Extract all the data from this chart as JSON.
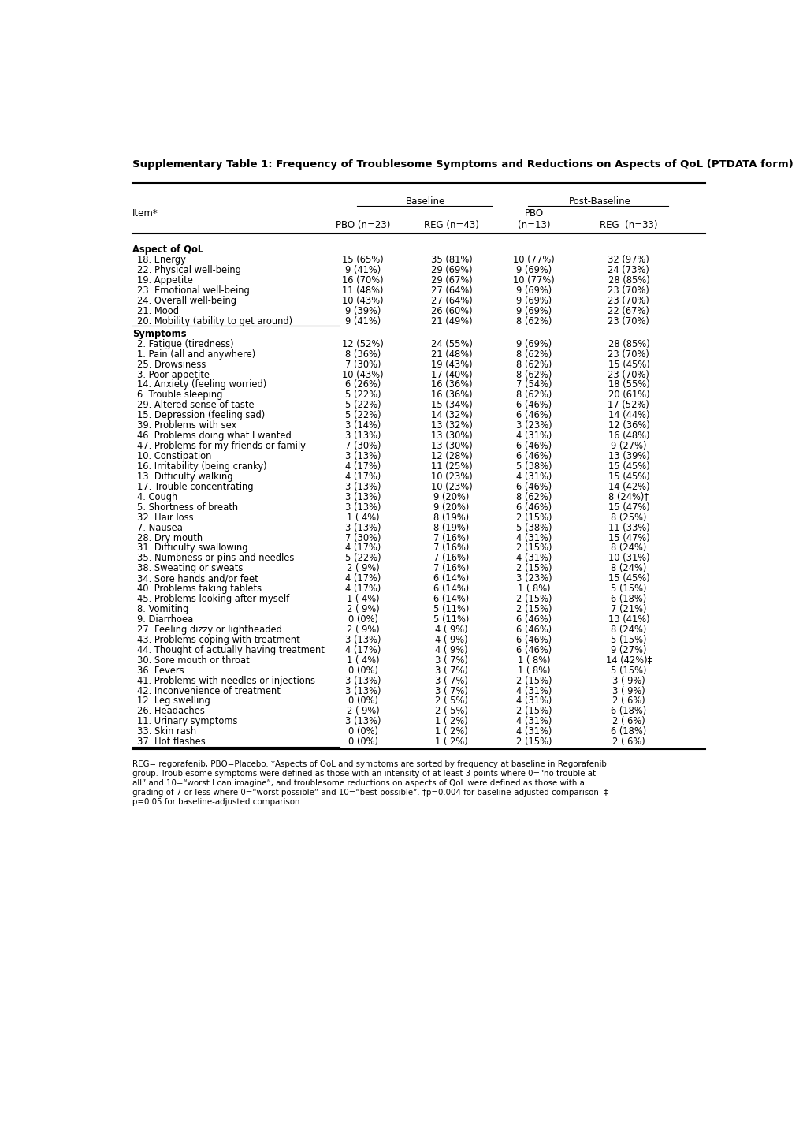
{
  "title": "Supplementary Table 1: Frequency of Troublesome Symptoms and Reductions on Aspects of QoL (PTDATA form)",
  "sections": [
    {
      "name": "Aspect of QoL",
      "rows": [
        [
          "18. Energy",
          "15 (65%)",
          "35 (81%)",
          "10 (77%)",
          "32 (97%)"
        ],
        [
          "22. Physical well-being",
          "9 (41%)",
          "29 (69%)",
          "9 (69%)",
          "24 (73%)"
        ],
        [
          "19. Appetite",
          "16 (70%)",
          "29 (67%)",
          "10 (77%)",
          "28 (85%)"
        ],
        [
          "23. Emotional well-being",
          "11 (48%)",
          "27 (64%)",
          "9 (69%)",
          "23 (70%)"
        ],
        [
          "24. Overall well-being",
          "10 (43%)",
          "27 (64%)",
          "9 (69%)",
          "23 (70%)"
        ],
        [
          "21. Mood",
          "9 (39%)",
          "26 (60%)",
          "9 (69%)",
          "22 (67%)"
        ],
        [
          "20. Mobility (ability to get around)",
          "9 (41%)",
          "21 (49%)",
          "8 (62%)",
          "23 (70%)"
        ]
      ]
    },
    {
      "name": "Symptoms",
      "rows": [
        [
          "2. Fatigue (tiredness)",
          "12 (52%)",
          "24 (55%)",
          "9 (69%)",
          "28 (85%)"
        ],
        [
          "1. Pain (all and anywhere)",
          "8 (36%)",
          "21 (48%)",
          "8 (62%)",
          "23 (70%)"
        ],
        [
          "25. Drowsiness",
          "7 (30%)",
          "19 (43%)",
          "8 (62%)",
          "15 (45%)"
        ],
        [
          "3. Poor appetite",
          "10 (43%)",
          "17 (40%)",
          "8 (62%)",
          "23 (70%)"
        ],
        [
          "14. Anxiety (feeling worried)",
          "6 (26%)",
          "16 (36%)",
          "7 (54%)",
          "18 (55%)"
        ],
        [
          "6. Trouble sleeping",
          "5 (22%)",
          "16 (36%)",
          "8 (62%)",
          "20 (61%)"
        ],
        [
          "29. Altered sense of taste",
          "5 (22%)",
          "15 (34%)",
          "6 (46%)",
          "17 (52%)"
        ],
        [
          "15. Depression (feeling sad)",
          "5 (22%)",
          "14 (32%)",
          "6 (46%)",
          "14 (44%)"
        ],
        [
          "39. Problems with sex",
          "3 (14%)",
          "13 (32%)",
          "3 (23%)",
          "12 (36%)"
        ],
        [
          "46. Problems doing what I wanted",
          "3 (13%)",
          "13 (30%)",
          "4 (31%)",
          "16 (48%)"
        ],
        [
          "47. Problems for my friends or family",
          "7 (30%)",
          "13 (30%)",
          "6 (46%)",
          "9 (27%)"
        ],
        [
          "10. Constipation",
          "3 (13%)",
          "12 (28%)",
          "6 (46%)",
          "13 (39%)"
        ],
        [
          "16. Irritability (being cranky)",
          "4 (17%)",
          "11 (25%)",
          "5 (38%)",
          "15 (45%)"
        ],
        [
          "13. Difficulty walking",
          "4 (17%)",
          "10 (23%)",
          "4 (31%)",
          "15 (45%)"
        ],
        [
          "17. Trouble concentrating",
          "3 (13%)",
          "10 (23%)",
          "6 (46%)",
          "14 (42%)"
        ],
        [
          "4. Cough",
          "3 (13%)",
          "9 (20%)",
          "8 (62%)",
          "8 (24%)†"
        ],
        [
          "5. Shortness of breath",
          "3 (13%)",
          "9 (20%)",
          "6 (46%)",
          "15 (47%)"
        ],
        [
          "32. Hair loss",
          "1 ( 4%)",
          "8 (19%)",
          "2 (15%)",
          "8 (25%)"
        ],
        [
          "7. Nausea",
          "3 (13%)",
          "8 (19%)",
          "5 (38%)",
          "11 (33%)"
        ],
        [
          "28. Dry mouth",
          "7 (30%)",
          "7 (16%)",
          "4 (31%)",
          "15 (47%)"
        ],
        [
          "31. Difficulty swallowing",
          "4 (17%)",
          "7 (16%)",
          "2 (15%)",
          "8 (24%)"
        ],
        [
          "35. Numbness or pins and needles",
          "5 (22%)",
          "7 (16%)",
          "4 (31%)",
          "10 (31%)"
        ],
        [
          "38. Sweating or sweats",
          "2 ( 9%)",
          "7 (16%)",
          "2 (15%)",
          "8 (24%)"
        ],
        [
          "34. Sore hands and/or feet",
          "4 (17%)",
          "6 (14%)",
          "3 (23%)",
          "15 (45%)"
        ],
        [
          "40. Problems taking tablets",
          "4 (17%)",
          "6 (14%)",
          "1 ( 8%)",
          "5 (15%)"
        ],
        [
          "45. Problems looking after myself",
          "1 ( 4%)",
          "6 (14%)",
          "2 (15%)",
          "6 (18%)"
        ],
        [
          "8. Vomiting",
          "2 ( 9%)",
          "5 (11%)",
          "2 (15%)",
          "7 (21%)"
        ],
        [
          "9. Diarrhoea",
          "0 (0%)",
          "5 (11%)",
          "6 (46%)",
          "13 (41%)"
        ],
        [
          "27. Feeling dizzy or lightheaded",
          "2 ( 9%)",
          "4 ( 9%)",
          "6 (46%)",
          "8 (24%)"
        ],
        [
          "43. Problems coping with treatment",
          "3 (13%)",
          "4 ( 9%)",
          "6 (46%)",
          "5 (15%)"
        ],
        [
          "44. Thought of actually having treatment",
          "4 (17%)",
          "4 ( 9%)",
          "6 (46%)",
          "9 (27%)"
        ],
        [
          "30. Sore mouth or throat",
          "1 ( 4%)",
          "3 ( 7%)",
          "1 ( 8%)",
          "14 (42%)‡"
        ],
        [
          "36. Fevers",
          "0 (0%)",
          "3 ( 7%)",
          "1 ( 8%)",
          "5 (15%)"
        ],
        [
          "41. Problems with needles or injections",
          "3 (13%)",
          "3 ( 7%)",
          "2 (15%)",
          "3 ( 9%)"
        ],
        [
          "42. Inconvenience of treatment",
          "3 (13%)",
          "3 ( 7%)",
          "4 (31%)",
          "3 ( 9%)"
        ],
        [
          "12. Leg swelling",
          "0 (0%)",
          "2 ( 5%)",
          "4 (31%)",
          "2 ( 6%)"
        ],
        [
          "26. Headaches",
          "2 ( 9%)",
          "2 ( 5%)",
          "2 (15%)",
          "6 (18%)"
        ],
        [
          "11. Urinary symptoms",
          "3 (13%)",
          "1 ( 2%)",
          "4 (31%)",
          "2 ( 6%)"
        ],
        [
          "33. Skin rash",
          "0 (0%)",
          "1 ( 2%)",
          "4 (31%)",
          "6 (18%)"
        ],
        [
          "37. Hot flashes",
          "0 (0%)",
          "1 ( 2%)",
          "2 (15%)",
          "2 ( 6%)"
        ]
      ]
    }
  ],
  "footnote": "REG= regorafenib, PBO=Placebo. *Aspects of QoL and symptoms are sorted by frequency at baseline in Regorafenib\ngroup. Troublesome symptoms were defined as those with an intensity of at least 3 points where 0=“no trouble at\nall” and 10=“worst I can imagine”, and troublesome reductions on aspects of QoL were defined as those with a\ngrading of 7 or less where 0=“worst possible” and 10=“best possible”. †p=0.004 for baseline-adjusted comparison. ‡\np=0.05 for baseline-adjusted comparison."
}
